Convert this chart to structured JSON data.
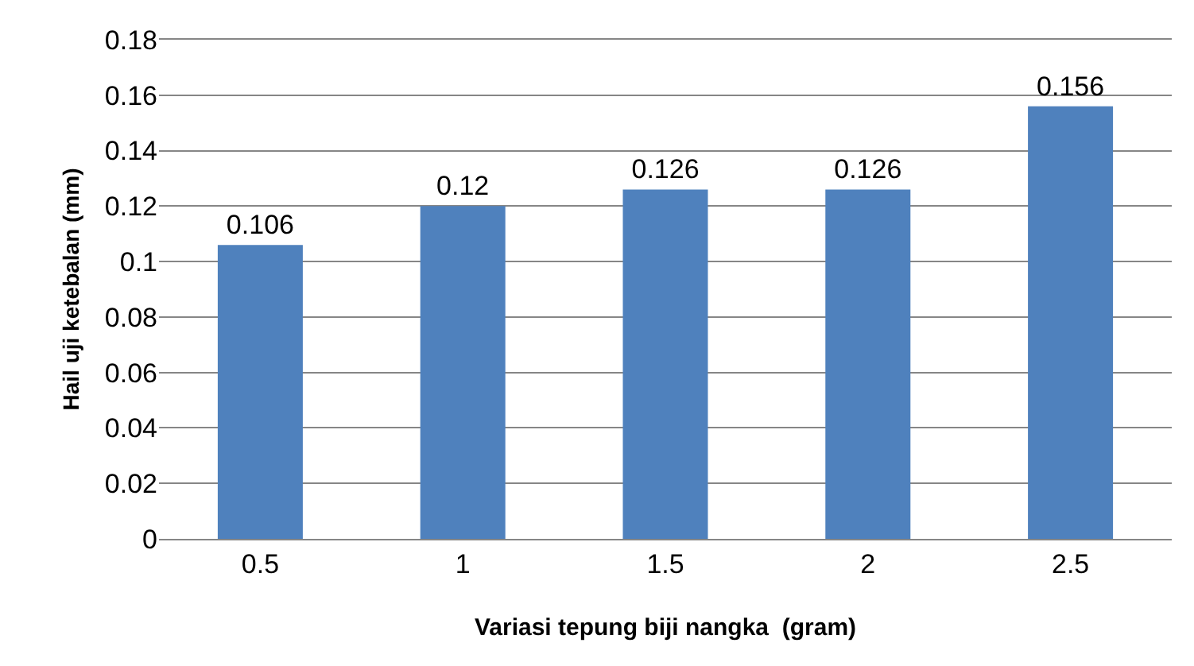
{
  "chart_data": {
    "type": "bar",
    "xlabel": "Variasi tepung biji nangka  (gram)",
    "ylabel": "Hail uji ketebalan (mm)",
    "categories": [
      "0.5",
      "1",
      "1.5",
      "2",
      "2.5"
    ],
    "values": [
      0.106,
      0.12,
      0.126,
      0.126,
      0.156
    ],
    "color": "#4f81bd",
    "ylim": [
      0,
      0.18
    ],
    "yticks": [
      0,
      0.02,
      0.04,
      0.06,
      0.08,
      0.1,
      0.12,
      0.14,
      0.16,
      0.18
    ],
    "grid": "y",
    "data_labels": true
  }
}
